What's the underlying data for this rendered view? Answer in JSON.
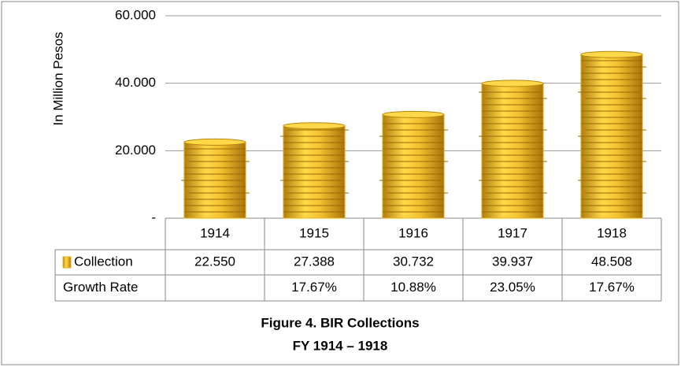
{
  "chart_data": {
    "type": "bar",
    "title": "Figure 4. BIR Collections",
    "subtitle": "FY 1914 – 1918",
    "y_label": "In Million Pesos",
    "categories": [
      "1914",
      "1915",
      "1916",
      "1917",
      "1918"
    ],
    "series": [
      {
        "name": "Collection",
        "color": "#e8b321",
        "values": [
          22.55,
          27.388,
          30.732,
          39.937,
          48.508
        ],
        "value_labels": [
          "22.550",
          "27.388",
          "30.732",
          "39.937",
          "48.508"
        ]
      }
    ],
    "growth_rate": {
      "name": "Growth Rate",
      "values": [
        null,
        17.67,
        10.88,
        23.05,
        17.67
      ],
      "value_labels": [
        null,
        "17.67%",
        "10.88%",
        "23.05%",
        "17.67%"
      ]
    },
    "ylim": [
      0,
      60
    ],
    "yticks": [
      {
        "value": 0,
        "label": "-"
      },
      {
        "value": 20,
        "label": "20.000"
      },
      {
        "value": 40,
        "label": "40.000"
      },
      {
        "value": 60,
        "label": "60.000"
      }
    ],
    "grid": true
  }
}
